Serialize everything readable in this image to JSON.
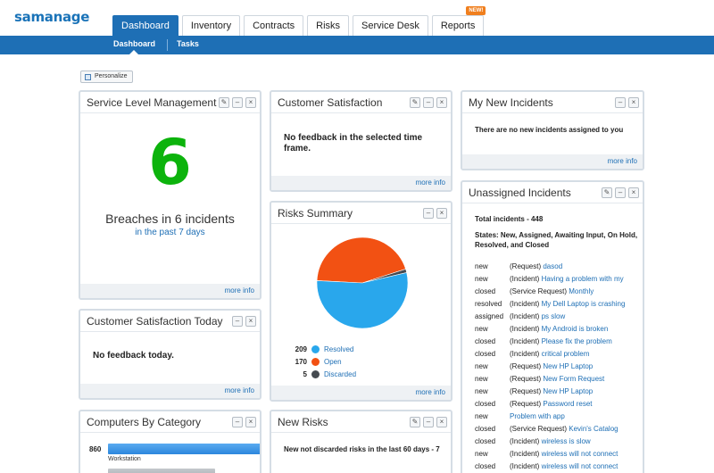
{
  "app": {
    "logo": "samanage"
  },
  "nav": {
    "tabs": [
      {
        "label": "Dashboard"
      },
      {
        "label": "Inventory"
      },
      {
        "label": "Contracts"
      },
      {
        "label": "Risks"
      },
      {
        "label": "Service Desk"
      },
      {
        "label": "Reports",
        "badge": "NEW!"
      }
    ],
    "subtabs": [
      {
        "label": "Dashboard"
      },
      {
        "label": "Tasks"
      }
    ]
  },
  "toolbar": {
    "personalize_label": "Personalize"
  },
  "widgets": {
    "slm": {
      "title": "Service Level Management",
      "big_number": "6",
      "line1": "Breaches in 6 incidents",
      "line2": "in the past 7 days",
      "more": "more info"
    },
    "csat": {
      "title": "Customer Satisfaction",
      "message": "No feedback in the selected time frame.",
      "more": "more info"
    },
    "my_new": {
      "title": "My New Incidents",
      "message": "There are no new incidents assigned to you",
      "more": "more info"
    },
    "risks_summary": {
      "title": "Risks Summary",
      "more": "more info",
      "legend": [
        {
          "count": "209",
          "label": "Resolved",
          "color": "#29a7ec"
        },
        {
          "count": "170",
          "label": "Open",
          "color": "#f25113"
        },
        {
          "count": "5",
          "label": "Discarded",
          "color": "#454a50"
        }
      ]
    },
    "csat_today": {
      "title": "Customer Satisfaction Today",
      "message": "No feedback today.",
      "more": "more info"
    },
    "unassigned": {
      "title": "Unassigned Incidents",
      "total": "Total incidents - 448",
      "states": "States: New, Assigned, Awaiting Input, On Hold, Resolved, and Closed",
      "rows": [
        {
          "status": "new",
          "type": "(Request)",
          "name": "dasod"
        },
        {
          "status": "new",
          "type": "(Incident)",
          "name": "Having a problem with my"
        },
        {
          "status": "closed",
          "type": "(Service Request)",
          "name": "Monthly"
        },
        {
          "status": "resolved",
          "type": "(Incident)",
          "name": "My Dell Laptop is crashing"
        },
        {
          "status": "assigned",
          "type": "(Incident)",
          "name": "ps slow"
        },
        {
          "status": "new",
          "type": "(Incident)",
          "name": "My Android is broken"
        },
        {
          "status": "closed",
          "type": "(Incident)",
          "name": "Please fix the problem"
        },
        {
          "status": "closed",
          "type": "(Incident)",
          "name": "critical problem"
        },
        {
          "status": "new",
          "type": "(Request)",
          "name": "New HP Laptop"
        },
        {
          "status": "new",
          "type": "(Request)",
          "name": "New Form Request"
        },
        {
          "status": "new",
          "type": "(Request)",
          "name": "New HP Laptop"
        },
        {
          "status": "closed",
          "type": "(Request)",
          "name": "Password reset"
        },
        {
          "status": "new",
          "type": "",
          "name": "Problem with app"
        },
        {
          "status": "closed",
          "type": "(Service Request)",
          "name": "Kevin's Catalog"
        },
        {
          "status": "closed",
          "type": "(Incident)",
          "name": "wireless is slow"
        },
        {
          "status": "new",
          "type": "(Incident)",
          "name": "wireless will not connect"
        },
        {
          "status": "closed",
          "type": "(Incident)",
          "name": "wireless will not connect"
        }
      ]
    },
    "computers": {
      "title": "Computers By Category",
      "rows": [
        {
          "count": "860",
          "label": "Workstation",
          "fraction": 1.0,
          "color": "blue"
        },
        {
          "count": "",
          "label": "",
          "fraction": 0.5,
          "color": "grey"
        }
      ]
    },
    "new_risks": {
      "title": "New Risks",
      "message": "New not discarded risks in the last 60 days - 7"
    }
  },
  "chart_data": {
    "type": "pie",
    "title": "Risks Summary",
    "categories": [
      "Resolved",
      "Open",
      "Discarded"
    ],
    "values": [
      209,
      170,
      5
    ],
    "colors": [
      "#29a7ec",
      "#f25113",
      "#454a50"
    ]
  }
}
